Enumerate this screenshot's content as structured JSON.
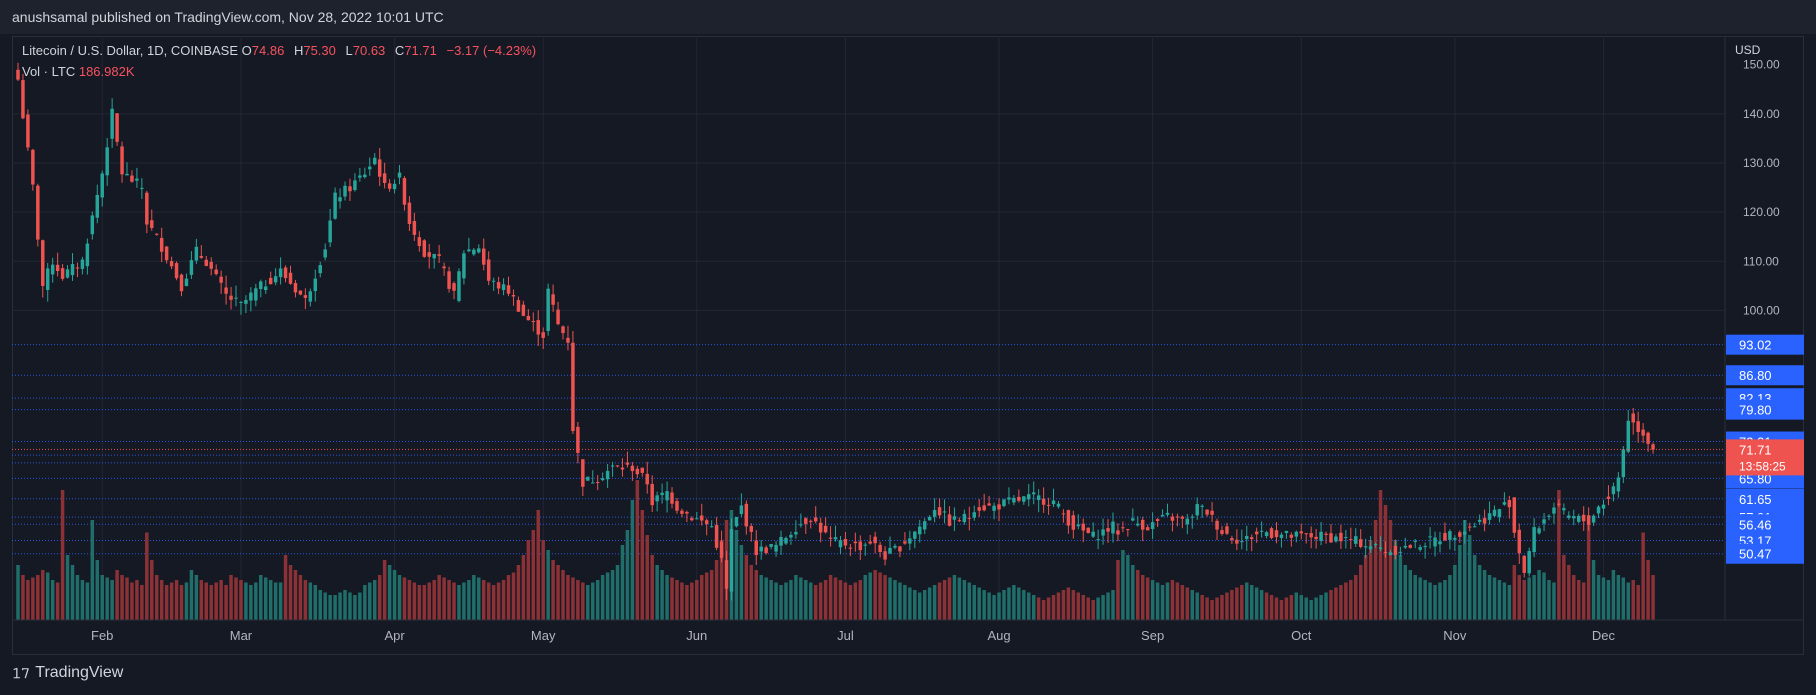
{
  "header": {
    "published": "anushsamal published on TradingView.com, Nov 28, 2022 10:01 UTC"
  },
  "legend": {
    "symbol": "Litecoin / U.S. Dollar, 1D, COINBASE",
    "o_label": "O",
    "o_value": "74.86",
    "h_label": "H",
    "h_value": "75.30",
    "l_label": "L",
    "l_value": "70.63",
    "c_label": "C",
    "c_value": "71.71",
    "change": "−3.17 (−4.23%)",
    "vol_label": "Vol · LTC",
    "vol_value": "186.982K"
  },
  "axis": {
    "currency": "USD"
  },
  "footer": {
    "brand": "TradingView"
  },
  "colors": {
    "up": "#26a69a",
    "down": "#ef5350",
    "hline": "#2962ff",
    "label_bg": "#2962ff"
  },
  "chart_data": {
    "type": "candlestick",
    "title": "Litecoin / U.S. Dollar, 1D, COINBASE",
    "ylabel": "USD",
    "ylim": [
      38,
      153
    ],
    "y_ticks": [
      140,
      130,
      120,
      110,
      100
    ],
    "price_levels": [
      93.02,
      86.8,
      82.13,
      79.8,
      73.31,
      70.55,
      68.97,
      65.8,
      61.65,
      57.91,
      56.46,
      53.17,
      50.47
    ],
    "current_price": "71.71",
    "countdown": "13:58:25",
    "x_labels": [
      "Feb",
      "Mar",
      "Apr",
      "May",
      "Jun",
      "Jul",
      "Aug",
      "Sep",
      "Oct",
      "Nov",
      "Dec"
    ],
    "x_label_days": [
      17,
      45,
      76,
      106,
      137,
      167,
      198,
      229,
      259,
      290,
      320
    ],
    "start_date": "2022-01-15",
    "close_path": [
      [
        0,
        147
      ],
      [
        3,
        125
      ],
      [
        5,
        105
      ],
      [
        7,
        110
      ],
      [
        9,
        107
      ],
      [
        13,
        110
      ],
      [
        17,
        128
      ],
      [
        19,
        140
      ],
      [
        21,
        128
      ],
      [
        25,
        125
      ],
      [
        26,
        118
      ],
      [
        29,
        113
      ],
      [
        33,
        105
      ],
      [
        36,
        112
      ],
      [
        38,
        110
      ],
      [
        42,
        103
      ],
      [
        45,
        101
      ],
      [
        48,
        104
      ],
      [
        53,
        108
      ],
      [
        58,
        102
      ],
      [
        62,
        113
      ],
      [
        64,
        123
      ],
      [
        67,
        125
      ],
      [
        70,
        128
      ],
      [
        72,
        131
      ],
      [
        74,
        125
      ],
      [
        77,
        127
      ],
      [
        79,
        118
      ],
      [
        82,
        112
      ],
      [
        85,
        110
      ],
      [
        88,
        103
      ],
      [
        90,
        112
      ],
      [
        93,
        113
      ],
      [
        95,
        106
      ],
      [
        99,
        104
      ],
      [
        102,
        99
      ],
      [
        106,
        95
      ],
      [
        107,
        104
      ],
      [
        109,
        97
      ],
      [
        111,
        94
      ],
      [
        112,
        76
      ],
      [
        114,
        65
      ],
      [
        117,
        66
      ],
      [
        120,
        68
      ],
      [
        124,
        68
      ],
      [
        127,
        65
      ],
      [
        128,
        61
      ],
      [
        131,
        63
      ],
      [
        133,
        60
      ],
      [
        136,
        58
      ],
      [
        140,
        56
      ],
      [
        142,
        49
      ],
      [
        143,
        43
      ],
      [
        144,
        55
      ],
      [
        146,
        60
      ],
      [
        149,
        51
      ],
      [
        153,
        52
      ],
      [
        157,
        56
      ],
      [
        160,
        58
      ],
      [
        164,
        53
      ],
      [
        170,
        52
      ],
      [
        172,
        53
      ],
      [
        175,
        50
      ],
      [
        178,
        52
      ],
      [
        183,
        57
      ],
      [
        185,
        60
      ],
      [
        188,
        57
      ],
      [
        192,
        58
      ],
      [
        193,
        60
      ],
      [
        197,
        60
      ],
      [
        200,
        61
      ],
      [
        205,
        62
      ],
      [
        209,
        61
      ],
      [
        213,
        56
      ],
      [
        217,
        54
      ],
      [
        221,
        56
      ],
      [
        222,
        55
      ],
      [
        225,
        57
      ],
      [
        228,
        56
      ],
      [
        232,
        58
      ],
      [
        236,
        57
      ],
      [
        238,
        60
      ],
      [
        240,
        59
      ],
      [
        243,
        55
      ],
      [
        247,
        53
      ],
      [
        251,
        55
      ],
      [
        257,
        54
      ],
      [
        264,
        54
      ],
      [
        270,
        53
      ],
      [
        277,
        51
      ],
      [
        281,
        52
      ],
      [
        285,
        53
      ],
      [
        288,
        54
      ],
      [
        291,
        55
      ],
      [
        295,
        57
      ],
      [
        298,
        59
      ],
      [
        301,
        61
      ],
      [
        302,
        55
      ],
      [
        304,
        47
      ],
      [
        306,
        55
      ],
      [
        310,
        60
      ],
      [
        313,
        58
      ],
      [
        317,
        57
      ],
      [
        319,
        60
      ],
      [
        321,
        62
      ],
      [
        323,
        66
      ],
      [
        325,
        78
      ],
      [
        328,
        75
      ],
      [
        330,
        72
      ]
    ],
    "volume": [
      1.1,
      0.9,
      0.8,
      0.85,
      0.9,
      1.0,
      0.95,
      0.8,
      0.75,
      2.6,
      1.3,
      1.1,
      0.9,
      0.8,
      0.75,
      2.0,
      1.2,
      0.9,
      0.85,
      0.8,
      1.0,
      0.9,
      0.85,
      0.75,
      0.8,
      0.7,
      1.75,
      1.2,
      0.9,
      0.8,
      0.7,
      0.75,
      0.8,
      0.7,
      0.75,
      1.0,
      0.9,
      0.8,
      0.75,
      0.7,
      0.75,
      0.8,
      0.7,
      0.9,
      0.85,
      0.8,
      0.75,
      0.7,
      0.75,
      0.9,
      0.85,
      0.8,
      0.75,
      0.75,
      1.3,
      1.1,
      1.0,
      0.9,
      0.8,
      0.75,
      0.7,
      0.6,
      0.55,
      0.5,
      0.5,
      0.55,
      0.6,
      0.55,
      0.5,
      0.55,
      0.7,
      0.75,
      0.8,
      0.9,
      1.2,
      1.1,
      1.0,
      0.9,
      0.85,
      0.8,
      0.75,
      0.7,
      0.7,
      0.75,
      0.8,
      0.9,
      0.85,
      0.8,
      0.75,
      0.7,
      0.75,
      0.8,
      0.9,
      0.85,
      0.8,
      0.75,
      0.7,
      0.75,
      0.8,
      0.9,
      0.95,
      1.1,
      1.3,
      1.6,
      1.8,
      2.2,
      1.6,
      1.4,
      1.2,
      1.1,
      1.0,
      0.9,
      0.85,
      0.8,
      0.75,
      0.7,
      0.75,
      0.8,
      0.9,
      0.95,
      1.0,
      1.1,
      1.5,
      1.8,
      2.4,
      2.8,
      2.2,
      1.7,
      1.3,
      1.1,
      1.0,
      0.9,
      0.85,
      0.8,
      0.75,
      0.7,
      0.75,
      0.8,
      0.9,
      0.95,
      1.0,
      1.2,
      1.6,
      2.0,
      2.2,
      1.8,
      1.5,
      1.3,
      1.1,
      1.0,
      0.9,
      0.85,
      0.8,
      0.75,
      0.7,
      0.75,
      0.8,
      0.9,
      0.85,
      0.8,
      0.75,
      0.7,
      0.75,
      0.8,
      0.9,
      0.85,
      0.8,
      0.75,
      0.7,
      0.75,
      0.8,
      0.9,
      0.95,
      1.0,
      0.95,
      0.9,
      0.85,
      0.8,
      0.75,
      0.7,
      0.65,
      0.6,
      0.55,
      0.6,
      0.65,
      0.7,
      0.75,
      0.8,
      0.85,
      0.9,
      0.85,
      0.8,
      0.75,
      0.7,
      0.65,
      0.6,
      0.55,
      0.5,
      0.55,
      0.6,
      0.65,
      0.7,
      0.65,
      0.6,
      0.55,
      0.5,
      0.45,
      0.4,
      0.45,
      0.5,
      0.55,
      0.6,
      0.65,
      0.6,
      0.55,
      0.5,
      0.45,
      0.4,
      0.45,
      0.5,
      0.55,
      0.6,
      1.2,
      1.4,
      1.3,
      1.1,
      1.0,
      0.9,
      0.85,
      0.8,
      0.75,
      0.7,
      0.75,
      0.8,
      0.75,
      0.7,
      0.65,
      0.6,
      0.55,
      0.5,
      0.45,
      0.4,
      0.45,
      0.5,
      0.55,
      0.6,
      0.65,
      0.7,
      0.75,
      0.7,
      0.65,
      0.6,
      0.55,
      0.5,
      0.45,
      0.4,
      0.45,
      0.5,
      0.55,
      0.5,
      0.45,
      0.4,
      0.45,
      0.5,
      0.55,
      0.6,
      0.65,
      0.7,
      0.75,
      0.8,
      0.9,
      1.1,
      1.3,
      1.6,
      2.0,
      2.6,
      2.3,
      2.0,
      1.6,
      1.3,
      1.1,
      1.0,
      0.9,
      0.85,
      0.8,
      0.75,
      0.7,
      0.75,
      0.8,
      0.9,
      1.1,
      1.5,
      2.0,
      1.7,
      1.3,
      1.1,
      1.0,
      0.9,
      0.85,
      0.8,
      0.75,
      0.7
    ]
  }
}
